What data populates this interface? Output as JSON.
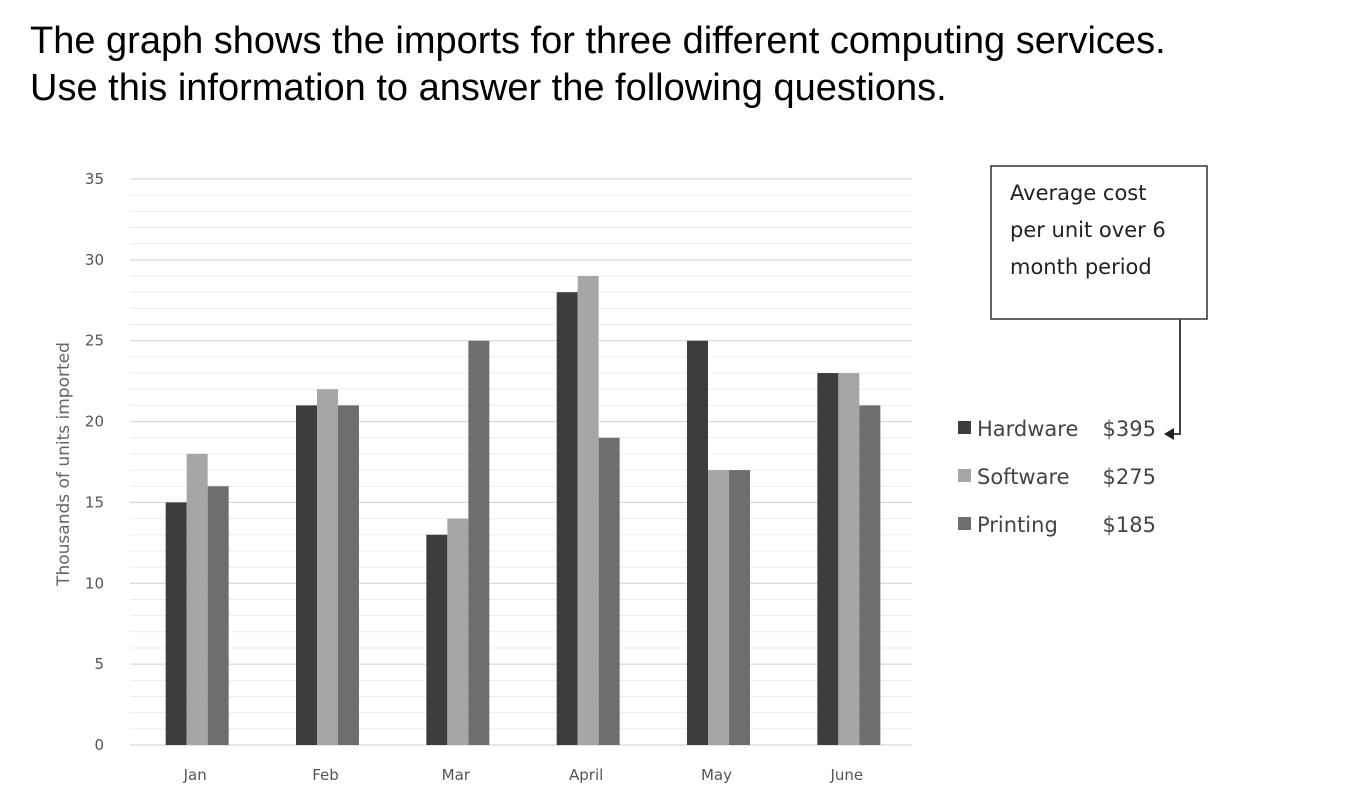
{
  "intro": {
    "line1": "The graph shows the imports for three different computing services.",
    "line2": "Use this information to answer the following questions."
  },
  "chart_data": {
    "type": "bar",
    "title": "",
    "xlabel": "",
    "ylabel": "Thousands of units imported",
    "ylim": [
      0,
      35
    ],
    "yticks": [
      0,
      5,
      10,
      15,
      20,
      25,
      30,
      35
    ],
    "grid": true,
    "legend_position": "right",
    "categories": [
      "Jan",
      "Feb",
      "Mar",
      "April",
      "May",
      "June"
    ],
    "series": [
      {
        "name": "Hardware",
        "cost": "$395",
        "color": "#3d3d3d",
        "values": [
          15,
          21,
          13,
          28,
          25,
          23
        ]
      },
      {
        "name": "Software",
        "cost": "$275",
        "color": "#a6a6a6",
        "values": [
          18,
          22,
          14,
          29,
          17,
          23
        ]
      },
      {
        "name": "Printing",
        "cost": "$185",
        "color": "#6e6e6e",
        "values": [
          16,
          21,
          25,
          19,
          17,
          21
        ]
      }
    ],
    "annotation": {
      "lines": [
        "Average cost",
        "per unit over 6",
        "month period"
      ]
    }
  }
}
